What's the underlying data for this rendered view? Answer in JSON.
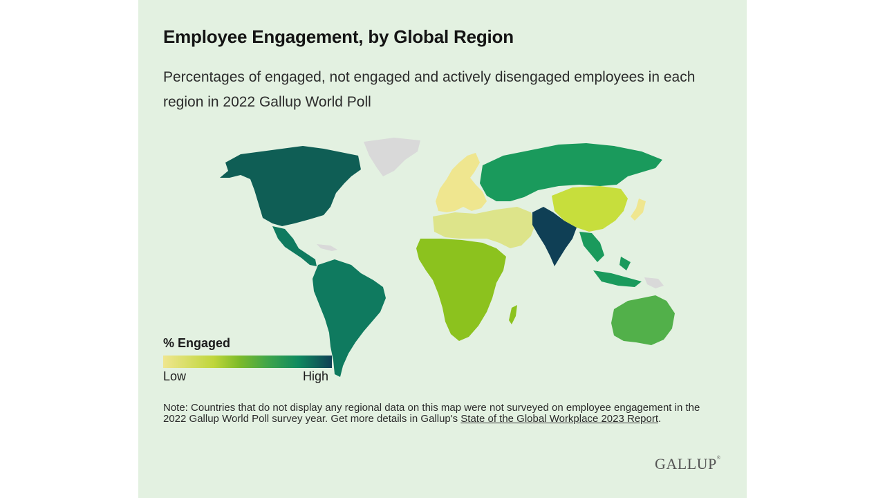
{
  "title": "Employee Engagement, by Global Region",
  "subtitle": "Percentages of engaged, not engaged and actively disengaged employees in each region in 2022 Gallup World Poll",
  "legend": {
    "title": "% Engaged",
    "low_label": "Low",
    "high_label": "High",
    "colors": [
      "#efe68f",
      "#bfd63b",
      "#7dbb2a",
      "#3fa54a",
      "#0f8a5f",
      "#0f3f55"
    ]
  },
  "map": {
    "not_surveyed_color": "#d9d9d9",
    "regions": [
      {
        "id": "north-america",
        "level": "high",
        "color": "#0f5e55"
      },
      {
        "id": "latin-america",
        "level": "high",
        "color": "#0f7a5f"
      },
      {
        "id": "europe",
        "level": "low",
        "color": "#efe68f"
      },
      {
        "id": "eastern-europe-central-asia",
        "level": "medium-high",
        "color": "#1a9a5c"
      },
      {
        "id": "mena",
        "level": "low",
        "color": "#dde48a"
      },
      {
        "id": "sub-saharan-africa",
        "level": "medium",
        "color": "#8cc21e"
      },
      {
        "id": "south-asia",
        "level": "highest",
        "color": "#0f3f55"
      },
      {
        "id": "east-asia",
        "level": "low-medium",
        "color": "#c7de3c"
      },
      {
        "id": "southeast-asia",
        "level": "medium-high",
        "color": "#1a9a5c"
      },
      {
        "id": "australia-new-zealand",
        "level": "medium",
        "color": "#52b04a"
      }
    ]
  },
  "note": {
    "text": "Note: Countries that do not display any regional data on this map were not surveyed on employee engagement in the 2022 Gallup World Poll survey year. Get more details in Gallup's ",
    "link_text": "State of the Global Workplace 2023 Report",
    "end": "."
  },
  "logo": {
    "text": "GALLUP",
    "mark": "®"
  }
}
